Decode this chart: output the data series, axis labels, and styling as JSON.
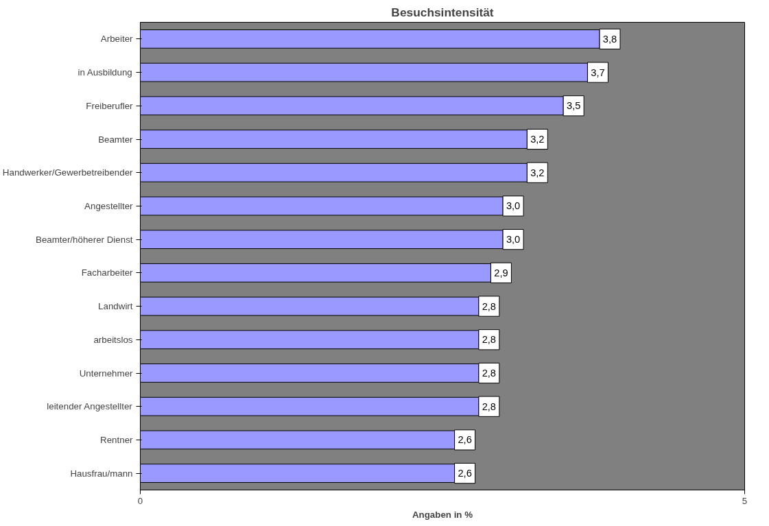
{
  "chart_data": {
    "type": "bar",
    "orientation": "horizontal",
    "title": "Besuchsintensität",
    "xlabel": "Angaben in %",
    "categories": [
      "Arbeiter",
      "in Ausbildung",
      "Freiberufler",
      "Beamter",
      "Handwerker/Gewerbetreibender",
      "Angestellter",
      "Beamter/höherer Dienst",
      "Facharbeiter",
      "Landwirt",
      "arbeitslos",
      "Unternehmer",
      "leitender Angestellter",
      "Rentner",
      "Hausfrau/mann"
    ],
    "values": [
      3.8,
      3.7,
      3.5,
      3.2,
      3.2,
      3.0,
      3.0,
      2.9,
      2.8,
      2.8,
      2.8,
      2.8,
      2.6,
      2.6
    ],
    "value_labels": [
      "3,8",
      "3,7",
      "3,5",
      "3,2",
      "3,2",
      "3,0",
      "3,0",
      "2,9",
      "2,8",
      "2,8",
      "2,8",
      "2,8",
      "2,6",
      "2,6"
    ],
    "color": "#9999ff",
    "xlim": [
      0,
      5
    ],
    "xticks": [
      0,
      5
    ],
    "grid": false
  }
}
